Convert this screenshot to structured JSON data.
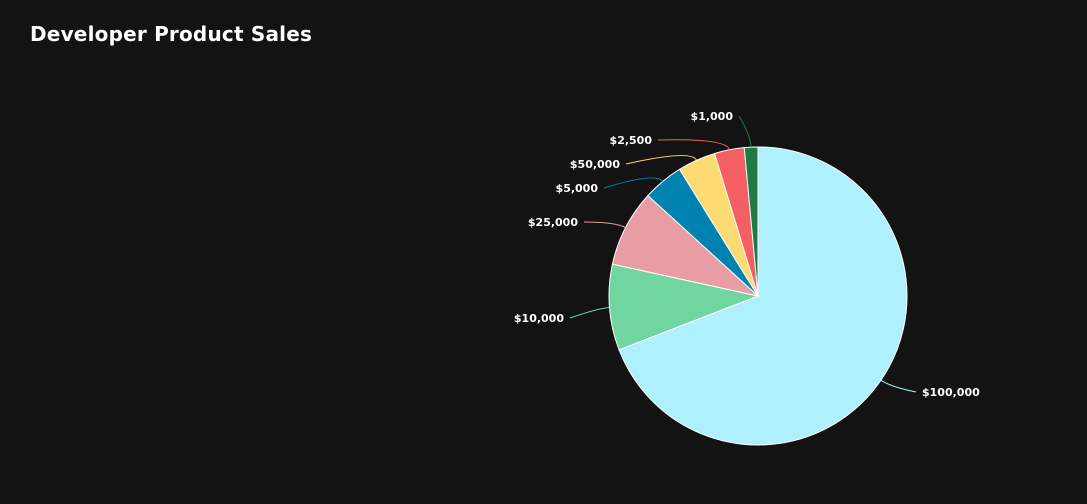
{
  "header": {
    "title": "Developer Product Sales"
  },
  "chart_data": {
    "type": "pie",
    "title": "Developer Product Sales",
    "start_angle_deg": 0,
    "direction": "clockwise",
    "slices": [
      {
        "label": "$100,000",
        "value": 70.5,
        "color": "#aef0fe"
      },
      {
        "label": "$10,000",
        "value": 9.5,
        "color": "#71d5a0"
      },
      {
        "label": "$25,000",
        "value": 8.5,
        "color": "#e89ca4"
      },
      {
        "label": "$5,000",
        "value": 4.5,
        "color": "#0082b0"
      },
      {
        "label": "$50,000",
        "value": 4.2,
        "color": "#fddb73"
      },
      {
        "label": "$2,500",
        "value": 3.3,
        "color": "#f35f63"
      },
      {
        "label": "$1,000",
        "value": 1.5,
        "color": "#1f7a46"
      }
    ]
  }
}
